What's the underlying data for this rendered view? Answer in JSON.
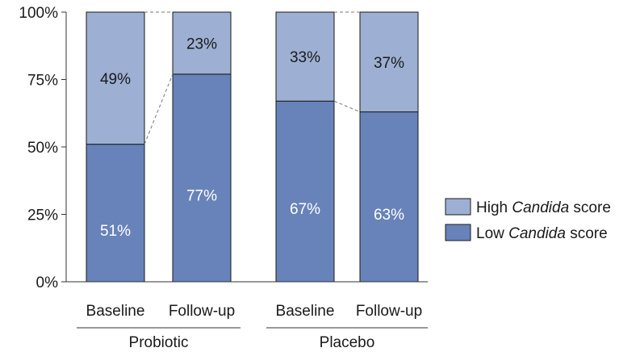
{
  "chart_data": {
    "type": "bar",
    "stacked": true,
    "percent_stacked": true,
    "title": "",
    "xlabel": "",
    "ylabel": "",
    "ylim": [
      0,
      100
    ],
    "y_ticks": [
      "0%",
      "25%",
      "50%",
      "75%",
      "100%"
    ],
    "categories": [
      "Baseline",
      "Follow-up",
      "Baseline",
      "Follow-up"
    ],
    "groups": [
      {
        "label": "Probiotic",
        "categories": [
          "Baseline",
          "Follow-up"
        ]
      },
      {
        "label": "Placebo",
        "categories": [
          "Baseline",
          "Follow-up"
        ]
      }
    ],
    "series": [
      {
        "name_prefix": "Low ",
        "name_italic": "Candida",
        "name_suffix": " score",
        "values": [
          51,
          77,
          67,
          63
        ],
        "labels": [
          "51%",
          "77%",
          "67%",
          "63%"
        ],
        "color": "#6883b9",
        "label_color": "#ffffff"
      },
      {
        "name_prefix": "High ",
        "name_italic": "Candida",
        "name_suffix": " score",
        "values": [
          49,
          23,
          33,
          37
        ],
        "labels": [
          "49%",
          "23%",
          "33%",
          "37%"
        ],
        "color": "#9db0d3",
        "label_color": "#1a1a1a"
      }
    ],
    "connector_lines": "dashed",
    "grid": false,
    "legend_position": "right"
  }
}
